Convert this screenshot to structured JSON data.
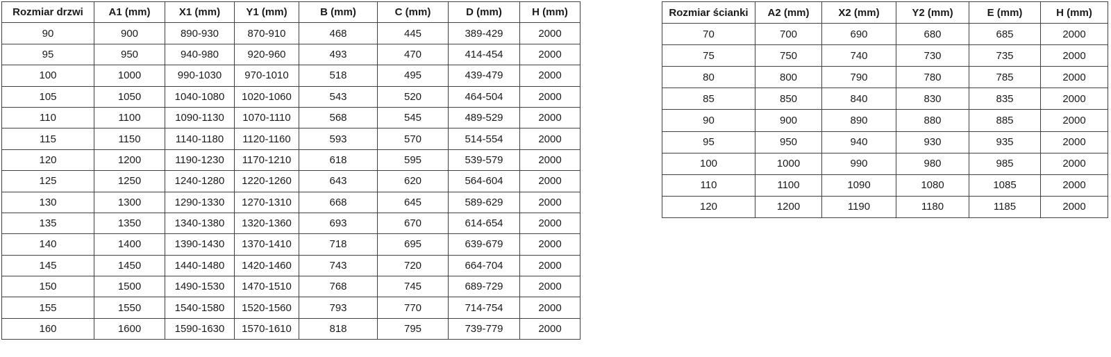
{
  "colors": {
    "background": "#ffffff",
    "border": "#404040",
    "text": "#1a1a1a"
  },
  "tables": [
    {
      "name": "door-size-table",
      "headers": [
        "Rozmiar drzwi",
        "A1 (mm)",
        "X1 (mm)",
        "Y1 (mm)",
        "B (mm)",
        "C (mm)",
        "D (mm)",
        "H (mm)"
      ],
      "rows": [
        [
          "90",
          "900",
          "890-930",
          "870-910",
          "468",
          "445",
          "389-429",
          "2000"
        ],
        [
          "95",
          "950",
          "940-980",
          "920-960",
          "493",
          "470",
          "414-454",
          "2000"
        ],
        [
          "100",
          "1000",
          "990-1030",
          "970-1010",
          "518",
          "495",
          "439-479",
          "2000"
        ],
        [
          "105",
          "1050",
          "1040-1080",
          "1020-1060",
          "543",
          "520",
          "464-504",
          "2000"
        ],
        [
          "110",
          "1100",
          "1090-1130",
          "1070-1110",
          "568",
          "545",
          "489-529",
          "2000"
        ],
        [
          "115",
          "1150",
          "1140-1180",
          "1120-1160",
          "593",
          "570",
          "514-554",
          "2000"
        ],
        [
          "120",
          "1200",
          "1190-1230",
          "1170-1210",
          "618",
          "595",
          "539-579",
          "2000"
        ],
        [
          "125",
          "1250",
          "1240-1280",
          "1220-1260",
          "643",
          "620",
          "564-604",
          "2000"
        ],
        [
          "130",
          "1300",
          "1290-1330",
          "1270-1310",
          "668",
          "645",
          "589-629",
          "2000"
        ],
        [
          "135",
          "1350",
          "1340-1380",
          "1320-1360",
          "693",
          "670",
          "614-654",
          "2000"
        ],
        [
          "140",
          "1400",
          "1390-1430",
          "1370-1410",
          "718",
          "695",
          "639-679",
          "2000"
        ],
        [
          "145",
          "1450",
          "1440-1480",
          "1420-1460",
          "743",
          "720",
          "664-704",
          "2000"
        ],
        [
          "150",
          "1500",
          "1490-1530",
          "1470-1510",
          "768",
          "745",
          "689-729",
          "2000"
        ],
        [
          "155",
          "1550",
          "1540-1580",
          "1520-1560",
          "793",
          "770",
          "714-754",
          "2000"
        ],
        [
          "160",
          "1600",
          "1590-1630",
          "1570-1610",
          "818",
          "795",
          "739-779",
          "2000"
        ]
      ]
    },
    {
      "name": "wall-size-table",
      "headers": [
        "Rozmiar ścianki",
        "A2 (mm)",
        "X2 (mm)",
        "Y2 (mm)",
        "E (mm)",
        "H (mm)"
      ],
      "rows": [
        [
          "70",
          "700",
          "690",
          "680",
          "685",
          "2000"
        ],
        [
          "75",
          "750",
          "740",
          "730",
          "735",
          "2000"
        ],
        [
          "80",
          "800",
          "790",
          "780",
          "785",
          "2000"
        ],
        [
          "85",
          "850",
          "840",
          "830",
          "835",
          "2000"
        ],
        [
          "90",
          "900",
          "890",
          "880",
          "885",
          "2000"
        ],
        [
          "95",
          "950",
          "940",
          "930",
          "935",
          "2000"
        ],
        [
          "100",
          "1000",
          "990",
          "980",
          "985",
          "2000"
        ],
        [
          "110",
          "1100",
          "1090",
          "1080",
          "1085",
          "2000"
        ],
        [
          "120",
          "1200",
          "1190",
          "1180",
          "1185",
          "2000"
        ]
      ]
    }
  ]
}
